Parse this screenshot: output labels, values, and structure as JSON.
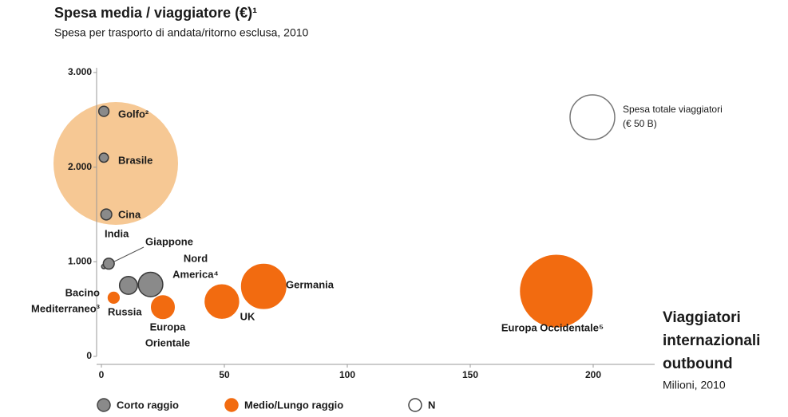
{
  "chart_data": {
    "type": "bubble",
    "title": "Spesa media / viaggiatore (€)¹",
    "subtitle": "Spesa per trasporto di andata/ritorno esclusa, 2010",
    "x_label": [
      "Viaggiatori",
      "internazionali",
      "outbound"
    ],
    "x_sublabel": "Milioni, 2010",
    "xlim": [
      0,
      225
    ],
    "xticks": [
      0,
      50,
      100,
      150,
      200
    ],
    "ylim": [
      0,
      3050
    ],
    "yticks": [
      0,
      {
        "value": 1000,
        "label": "1.000"
      },
      {
        "value": 2000,
        "label": "2.000"
      },
      {
        "value": 3000,
        "label": "3.000"
      }
    ],
    "size_legend": {
      "title": [
        "Spesa totale viaggiatori",
        "(€ 50 B)"
      ],
      "value": 50
    },
    "series": [
      {
        "name": "Corto raggio",
        "color": "#8a8a8a",
        "x": [
          1,
          1,
          2,
          1,
          3,
          20,
          11
        ],
        "values": [
          2590,
          2100,
          1500,
          950,
          980,
          760,
          750
        ],
        "sizes": [
          2.6,
          2.1,
          3,
          0.5,
          3,
          15,
          8
        ],
        "labels": [
          [
            "Golfo²"
          ],
          [
            "Brasile"
          ],
          [
            "Cina"
          ],
          [
            "India"
          ],
          [
            "Giappone"
          ],
          [
            "Nord",
            "America⁴"
          ],
          [
            "Russia"
          ]
        ]
      },
      {
        "name": "Medio/Lungo raggio",
        "color": "#f26b10",
        "x": [
          5,
          25,
          49,
          66,
          185
        ],
        "values": [
          620,
          520,
          580,
          740,
          690
        ],
        "sizes": [
          3,
          13,
          28,
          49,
          128
        ],
        "labels": [
          [
            "Bacino",
            "Mediterraneo³"
          ],
          [
            "Europa",
            "Orientale"
          ],
          [
            "UK"
          ],
          [
            "Germania"
          ],
          [
            "Europa Occidentale⁵"
          ]
        ]
      },
      {
        "name": "N",
        "color": "#ffffff",
        "x": [],
        "values": [],
        "sizes": [],
        "labels": []
      }
    ]
  }
}
